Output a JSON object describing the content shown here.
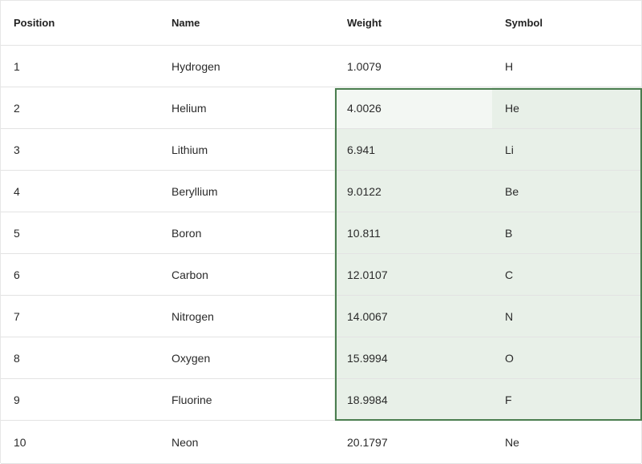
{
  "table": {
    "columns": [
      "Position",
      "Name",
      "Weight",
      "Symbol"
    ],
    "rows": [
      {
        "position": "1",
        "name": "Hydrogen",
        "weight": "1.0079",
        "symbol": "H"
      },
      {
        "position": "2",
        "name": "Helium",
        "weight": "4.0026",
        "symbol": "He"
      },
      {
        "position": "3",
        "name": "Lithium",
        "weight": "6.941",
        "symbol": "Li"
      },
      {
        "position": "4",
        "name": "Beryllium",
        "weight": "9.0122",
        "symbol": "Be"
      },
      {
        "position": "5",
        "name": "Boron",
        "weight": "10.811",
        "symbol": "B"
      },
      {
        "position": "6",
        "name": "Carbon",
        "weight": "12.0107",
        "symbol": "C"
      },
      {
        "position": "7",
        "name": "Nitrogen",
        "weight": "14.0067",
        "symbol": "N"
      },
      {
        "position": "8",
        "name": "Oxygen",
        "weight": "15.9994",
        "symbol": "O"
      },
      {
        "position": "9",
        "name": "Fluorine",
        "weight": "18.9984",
        "symbol": "F"
      },
      {
        "position": "10",
        "name": "Neon",
        "weight": "20.1797",
        "symbol": "Ne"
      }
    ]
  },
  "colors": {
    "selection_border": "#4a7d4f",
    "selection_fill": "#e8f0e8",
    "active_cell_fill": "#f3f7f3"
  }
}
